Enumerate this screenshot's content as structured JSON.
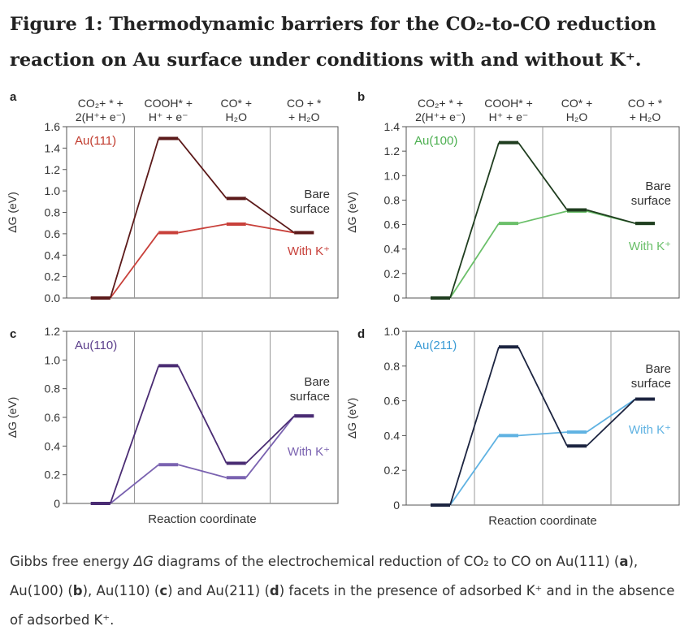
{
  "figure": {
    "title": "Figure 1: Thermodynamic barriers for the CO₂-to-CO reduction reaction on Au surface under conditions with and without K⁺.",
    "caption": {
      "t1": "Gibbs free energy ",
      "t2": "ΔG",
      "t3": " diagrams of the electrochemical reduction of CO₂ to CO on Au(111) (",
      "t4": "a",
      "t5": "), Au(100) (",
      "t6": "b",
      "t7": "), Au(110) (",
      "t8": "c",
      "t9": ") and Au(211) (",
      "t10": "d",
      "t11": ") facets in the presence of adsorbed K⁺ and in the absence of adsorbed K⁺."
    }
  },
  "step_labels": [
    {
      "line1": "CO₂+ * +",
      "line2": "2(H⁺+ e⁻)"
    },
    {
      "line1": "COOH* +",
      "line2": "H⁺ + e⁻"
    },
    {
      "line1": "CO* +",
      "line2": "H₂O"
    },
    {
      "line1": "CO + *",
      "line2": "+ H₂O"
    }
  ],
  "chart_data": [
    {
      "type": "line",
      "panel": "a",
      "facet": "Au(111)",
      "ylabel": "ΔG (eV)",
      "xlabel": "",
      "ylim": [
        0,
        1.6
      ],
      "yticks": [
        "0.0",
        "0.2",
        "0.4",
        "0.6",
        "0.8",
        "1.0",
        "1.2",
        "1.4",
        "1.6"
      ],
      "y_tick_values": [
        0,
        0.2,
        0.4,
        0.6,
        0.8,
        1.0,
        1.2,
        1.4,
        1.6
      ],
      "steps": 4,
      "label_color": "#c0392b",
      "series": [
        {
          "name": "Bare surface",
          "label_lines": [
            "Bare",
            "surface"
          ],
          "color": "#5c1a1a",
          "values": [
            0.0,
            1.49,
            0.93,
            0.61
          ]
        },
        {
          "name": "With K⁺",
          "label_lines": [
            "With K⁺"
          ],
          "color": "#c8403a",
          "values": [
            0.0,
            0.61,
            0.69,
            0.61
          ]
        }
      ]
    },
    {
      "type": "line",
      "panel": "b",
      "facet": "Au(100)",
      "ylabel": "ΔG (eV)",
      "xlabel": "",
      "ylim": [
        0,
        1.4
      ],
      "yticks": [
        "0",
        "0.2",
        "0.4",
        "0.6",
        "0.8",
        "1.0",
        "1.2",
        "1.4"
      ],
      "y_tick_values": [
        0,
        0.2,
        0.4,
        0.6,
        0.8,
        1.0,
        1.2,
        1.4
      ],
      "steps": 4,
      "label_color": "#4caf50",
      "series": [
        {
          "name": "Bare surface",
          "label_lines": [
            "Bare",
            "surface"
          ],
          "color": "#1f3d1f",
          "values": [
            0.0,
            1.27,
            0.72,
            0.61
          ]
        },
        {
          "name": "With K⁺",
          "label_lines": [
            "With K⁺"
          ],
          "color": "#6abf69",
          "values": [
            0.0,
            0.61,
            0.71,
            0.61
          ]
        }
      ]
    },
    {
      "type": "line",
      "panel": "c",
      "facet": "Au(110)",
      "ylabel": "ΔG (eV)",
      "xlabel": "Reaction coordinate",
      "ylim": [
        0,
        1.2
      ],
      "yticks": [
        "0",
        "0.2",
        "0.4",
        "0.6",
        "0.8",
        "1.0",
        "1.2"
      ],
      "y_tick_values": [
        0,
        0.2,
        0.4,
        0.6,
        0.8,
        1.0,
        1.2
      ],
      "steps": 4,
      "label_color": "#5a3d8a",
      "series": [
        {
          "name": "Bare surface",
          "label_lines": [
            "Bare",
            "surface"
          ],
          "color": "#4a2c73",
          "values": [
            0.0,
            0.96,
            0.28,
            0.61
          ]
        },
        {
          "name": "With K⁺",
          "label_lines": [
            "With K⁺"
          ],
          "color": "#7a62b0",
          "values": [
            0.0,
            0.27,
            0.18,
            0.61
          ]
        }
      ]
    },
    {
      "type": "line",
      "panel": "d",
      "facet": "Au(211)",
      "ylabel": "ΔG (eV)",
      "xlabel": "Reaction coordinate",
      "ylim": [
        0,
        1.0
      ],
      "yticks": [
        "0",
        "0.2",
        "0.4",
        "0.6",
        "0.8",
        "1.0"
      ],
      "y_tick_values": [
        0,
        0.2,
        0.4,
        0.6,
        0.8,
        1.0
      ],
      "steps": 4,
      "label_color": "#3a9bd5",
      "series": [
        {
          "name": "Bare surface",
          "label_lines": [
            "Bare",
            "surface"
          ],
          "color": "#1c2440",
          "values": [
            0.0,
            0.91,
            0.34,
            0.61
          ]
        },
        {
          "name": "With K⁺",
          "label_lines": [
            "With K⁺"
          ],
          "color": "#5fb2e2",
          "values": [
            0.0,
            0.4,
            0.42,
            0.61
          ]
        }
      ]
    }
  ]
}
